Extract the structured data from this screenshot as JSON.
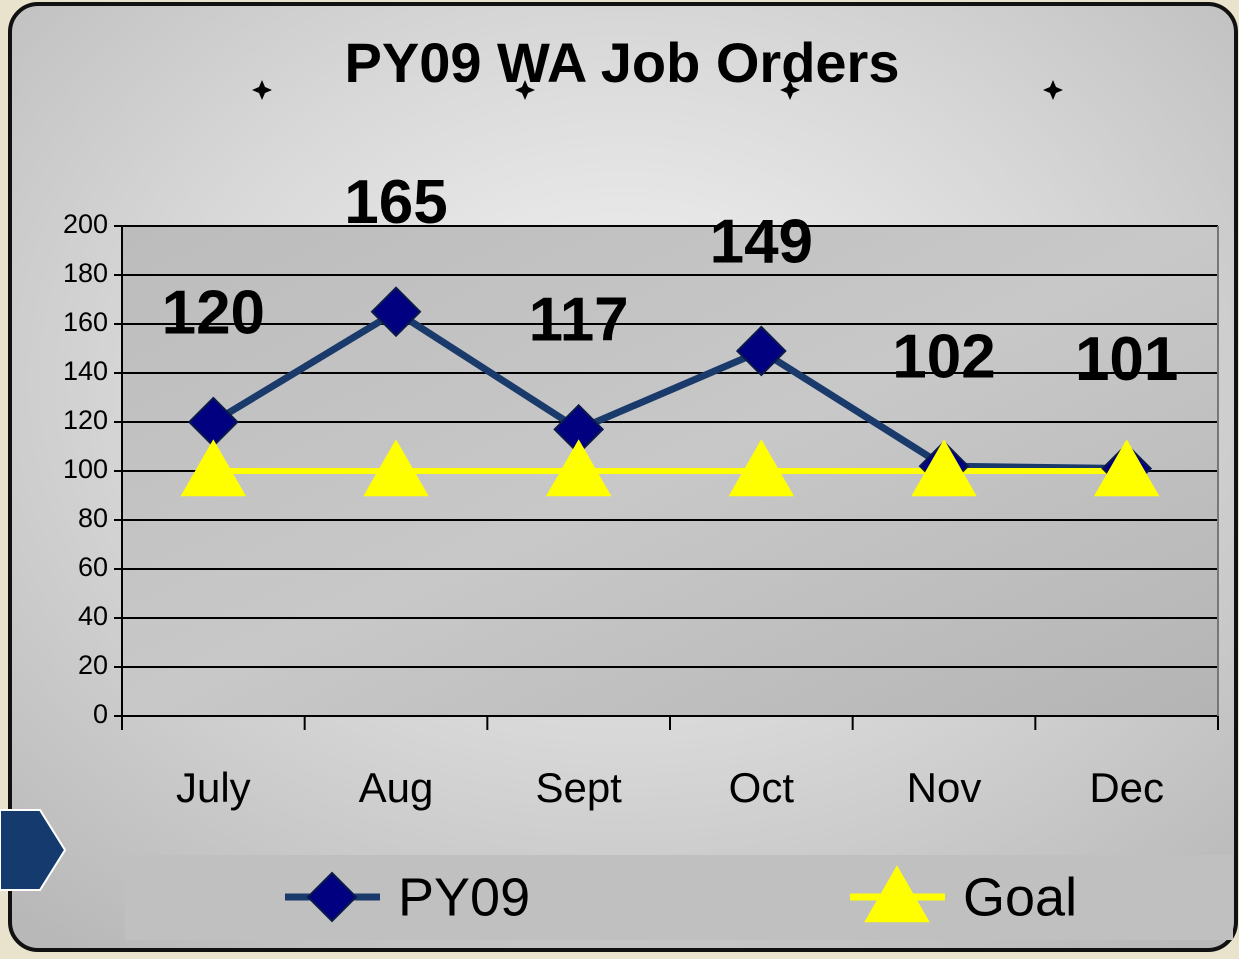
{
  "chart_data": {
    "type": "line",
    "title": "PY09 WA Job Orders",
    "categories": [
      "July",
      "Aug",
      "Sept",
      "Oct",
      "Nov",
      "Dec"
    ],
    "series": [
      {
        "name": "PY09",
        "color": "#1a3a6b",
        "marker_color": "#000080",
        "marker": "diamond",
        "values": [
          120,
          165,
          117,
          149,
          102,
          101
        ]
      },
      {
        "name": "Goal",
        "color": "#ffff00",
        "marker_color": "#ffff00",
        "marker": "triangle",
        "values": [
          100,
          100,
          100,
          100,
          100,
          100
        ]
      }
    ],
    "data_labels_series": 0,
    "ylim": [
      0,
      200
    ],
    "yticks": [
      0,
      20,
      40,
      60,
      80,
      100,
      120,
      140,
      160,
      180,
      200
    ],
    "grid": true,
    "legend": "bottom"
  }
}
